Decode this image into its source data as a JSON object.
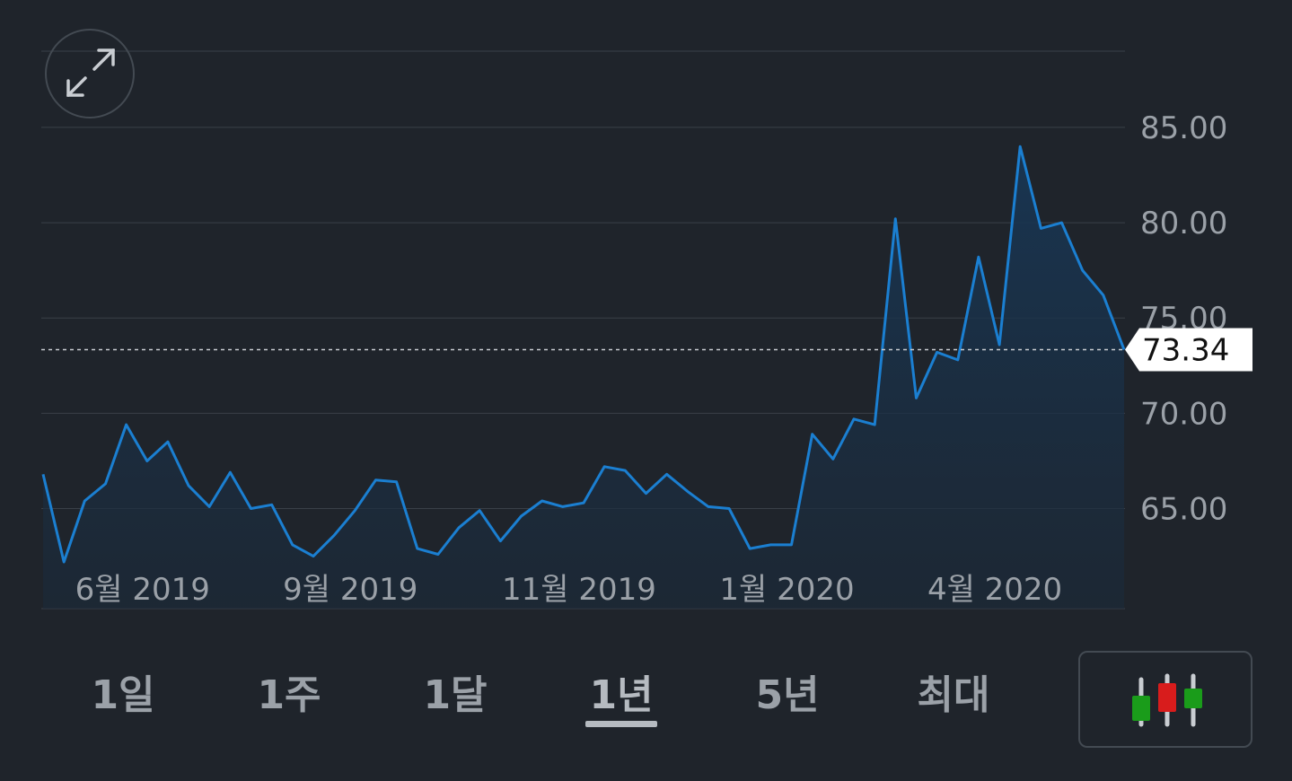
{
  "chart_data": {
    "type": "area",
    "ylim": [
      59.75,
      89.0
    ],
    "y_ticks": [
      "85.00",
      "80.00",
      "75.00",
      "70.00",
      "65.00"
    ],
    "y_tick_values": [
      85,
      80,
      75,
      70,
      65
    ],
    "x_tick_labels": [
      "6월 2019",
      "9월 2019",
      "11월 2019",
      "1월 2020",
      "4월 2020"
    ],
    "x_tick_index": [
      5,
      15,
      26,
      36,
      46
    ],
    "current_value": 73.34,
    "current_label": "73.34",
    "series": [
      {
        "values": [
          66.8,
          62.2,
          65.4,
          66.3,
          69.4,
          67.5,
          68.5,
          66.2,
          65.1,
          66.9,
          65.0,
          65.2,
          63.1,
          62.5,
          63.6,
          64.9,
          66.5,
          66.4,
          62.9,
          62.6,
          64.0,
          64.9,
          63.3,
          64.6,
          65.4,
          65.1,
          65.3,
          67.2,
          67.0,
          65.8,
          66.8,
          65.9,
          65.1,
          65.0,
          62.9,
          63.1,
          63.1,
          68.9,
          67.6,
          69.7,
          69.4,
          80.2,
          70.8,
          73.2,
          72.8,
          78.2,
          73.6,
          84.0,
          79.7,
          80.0,
          77.5,
          76.2,
          73.34
        ]
      }
    ]
  },
  "controls": {
    "ranges": [
      "1일",
      "1주",
      "1달",
      "1년",
      "5년",
      "최대"
    ],
    "selected_range": "1년"
  },
  "colors": {
    "background": "#1f242b",
    "line": "#1b7fd1",
    "fill_top": "#17324d",
    "grid": "#3a4048",
    "text": "#9ba1a8",
    "candle_green": "#1a9c1a",
    "candle_red": "#d81c1c"
  },
  "icons": {
    "expand": "expand-arrows-icon",
    "chart_type": "candlestick-icon"
  }
}
